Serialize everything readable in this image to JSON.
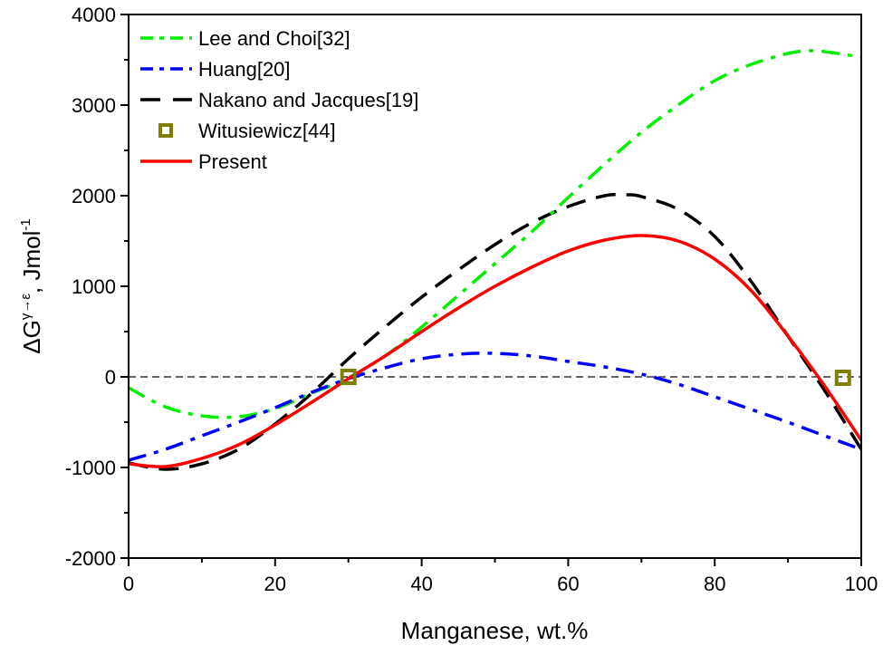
{
  "chart_data": {
    "type": "line",
    "title": "",
    "xlabel": "Manganese, wt.%",
    "ylabel": {
      "base": "ΔG",
      "sup": "γ→ε",
      "unit": ", Jmol",
      "unit_sup": "-1"
    },
    "xlim": [
      0,
      100
    ],
    "ylim": [
      -2000,
      4000
    ],
    "xticks": [
      0,
      20,
      40,
      60,
      80,
      100
    ],
    "yticks": [
      -2000,
      -1000,
      0,
      1000,
      2000,
      3000,
      4000
    ],
    "grid": false,
    "legend_position": "top-left",
    "reference_line": {
      "y": 0,
      "style": "dashed",
      "color": "#333333"
    },
    "series": [
      {
        "name": "Lee and Choi[32]",
        "color": "#00ee00",
        "style": "dash-dot",
        "x": [
          0,
          5,
          10,
          15,
          20,
          25,
          30,
          35,
          40,
          45,
          50,
          55,
          60,
          65,
          70,
          75,
          80,
          85,
          90,
          93,
          95,
          100
        ],
        "y": [
          -120,
          -330,
          -430,
          -440,
          -350,
          -180,
          -10,
          230,
          550,
          900,
          1250,
          1600,
          1980,
          2350,
          2700,
          3000,
          3270,
          3450,
          3570,
          3600,
          3590,
          3530
        ]
      },
      {
        "name": "Huang[20]",
        "color": "#0000ff",
        "style": "dash-dot",
        "x": [
          0,
          5,
          10,
          15,
          20,
          25,
          30,
          35,
          40,
          45,
          50,
          55,
          60,
          65,
          70,
          75,
          80,
          85,
          90,
          95,
          100
        ],
        "y": [
          -920,
          -800,
          -650,
          -500,
          -340,
          -170,
          -20,
          100,
          200,
          250,
          260,
          230,
          170,
          110,
          30,
          -80,
          -220,
          -360,
          -500,
          -650,
          -800
        ]
      },
      {
        "name": "Nakano and Jacques[19]",
        "color": "#000000",
        "style": "dash",
        "x": [
          0,
          5,
          10,
          15,
          20,
          25,
          30,
          35,
          40,
          45,
          50,
          55,
          60,
          65,
          68,
          70,
          75,
          80,
          85,
          90,
          95,
          100
        ],
        "y": [
          -950,
          -1020,
          -960,
          -800,
          -520,
          -180,
          200,
          550,
          880,
          1180,
          1460,
          1700,
          1880,
          2000,
          2010,
          1990,
          1850,
          1550,
          1050,
          450,
          -150,
          -800
        ]
      },
      {
        "name": "Witusiewicz[44]",
        "color": "#808000",
        "style": "marker-square",
        "x": [
          30,
          97.5
        ],
        "y": [
          0,
          -10
        ]
      },
      {
        "name": "Present",
        "color": "#ff0000",
        "style": "solid",
        "x": [
          0,
          5,
          10,
          15,
          20,
          25,
          30,
          35,
          40,
          45,
          50,
          55,
          60,
          65,
          70,
          75,
          80,
          85,
          90,
          95,
          100
        ],
        "y": [
          -960,
          -990,
          -900,
          -750,
          -530,
          -280,
          -20,
          230,
          500,
          760,
          1000,
          1210,
          1390,
          1510,
          1560,
          1500,
          1300,
          950,
          450,
          -100,
          -700
        ]
      }
    ]
  }
}
